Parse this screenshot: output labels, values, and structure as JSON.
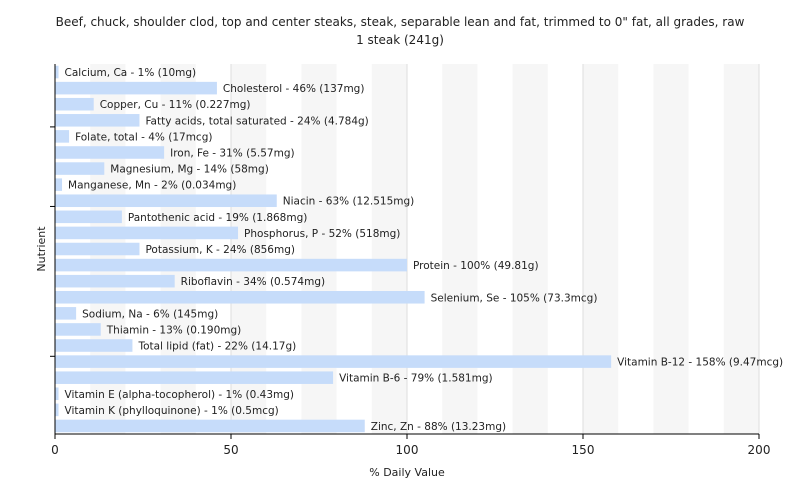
{
  "chart_data": {
    "type": "bar",
    "orientation": "horizontal",
    "title": "Beef, chuck, shoulder clod, top and center steaks, steak, separable lean and fat, trimmed to 0\" fat, all grades, raw",
    "subtitle": "1 steak (241g)",
    "xlabel": "% Daily Value",
    "ylabel": "Nutrient",
    "xlim": [
      0,
      200
    ],
    "xticks": [
      0,
      50,
      100,
      150,
      200
    ],
    "grid": true,
    "bar_color": "#c6dcfa",
    "categories": [
      "Calcium, Ca",
      "Cholesterol",
      "Copper, Cu",
      "Fatty acids, total saturated",
      "Folate, total",
      "Iron, Fe",
      "Magnesium, Mg",
      "Manganese, Mn",
      "Niacin",
      "Pantothenic acid",
      "Phosphorus, P",
      "Potassium, K",
      "Protein",
      "Riboflavin",
      "Selenium, Se",
      "Sodium, Na",
      "Thiamin",
      "Total lipid (fat)",
      "Vitamin B-12",
      "Vitamin B-6",
      "Vitamin E (alpha-tocopherol)",
      "Vitamin K (phylloquinone)",
      "Zinc, Zn"
    ],
    "values": [
      1,
      46,
      11,
      24,
      4,
      31,
      14,
      2,
      63,
      19,
      52,
      24,
      100,
      34,
      105,
      6,
      13,
      22,
      158,
      79,
      1,
      1,
      88
    ],
    "labels": [
      "Calcium, Ca - 1% (10mg)",
      "Cholesterol - 46% (137mg)",
      "Copper, Cu - 11% (0.227mg)",
      "Fatty acids, total saturated - 24% (4.784g)",
      "Folate, total - 4% (17mcg)",
      "Iron, Fe - 31% (5.57mg)",
      "Magnesium, Mg - 14% (58mg)",
      "Manganese, Mn - 2% (0.034mg)",
      "Niacin - 63% (12.515mg)",
      "Pantothenic acid - 19% (1.868mg)",
      "Phosphorus, P - 52% (518mg)",
      "Potassium, K - 24% (856mg)",
      "Protein - 100% (49.81g)",
      "Riboflavin - 34% (0.574mg)",
      "Selenium, Se - 105% (73.3mcg)",
      "Sodium, Na - 6% (145mg)",
      "Thiamin - 13% (0.190mg)",
      "Total lipid (fat) - 22% (14.17g)",
      "Vitamin B-12 - 158% (9.47mcg)",
      "Vitamin B-6 - 79% (1.581mg)",
      "Vitamin E (alpha-tocopherol) - 1% (0.43mg)",
      "Vitamin K (phylloquinone) - 1% (0.5mcg)",
      "Zinc, Zn - 88% (13.23mg)"
    ]
  }
}
